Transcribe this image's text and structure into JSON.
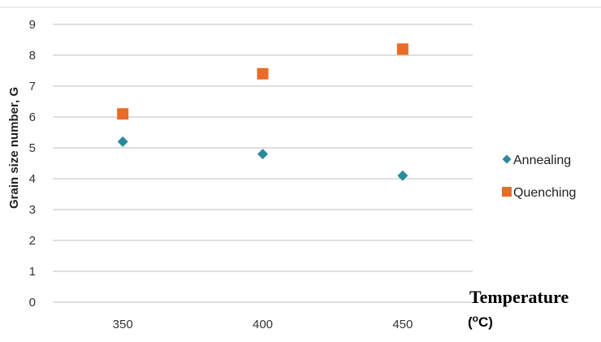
{
  "chart_data": {
    "type": "scatter",
    "title": "",
    "ylabel": "Grain size number, G",
    "xlabel": {
      "main": "Temperature",
      "unit_prefix": "(",
      "unit_sup": "o",
      "unit_suffix": "C)"
    },
    "categories": [
      "350",
      "400",
      "450"
    ],
    "ylim": [
      0,
      9
    ],
    "yticks": [
      0,
      1,
      2,
      3,
      4,
      5,
      6,
      7,
      8,
      9
    ],
    "grid": true,
    "legend_position": "right",
    "series": [
      {
        "name": "Annealing",
        "marker": "diamond",
        "color": "#2b8a9b",
        "values": [
          5.2,
          4.8,
          4.1
        ]
      },
      {
        "name": "Quenching",
        "marker": "square",
        "color": "#ea6b27",
        "values": [
          6.1,
          7.4,
          8.2
        ]
      }
    ]
  }
}
